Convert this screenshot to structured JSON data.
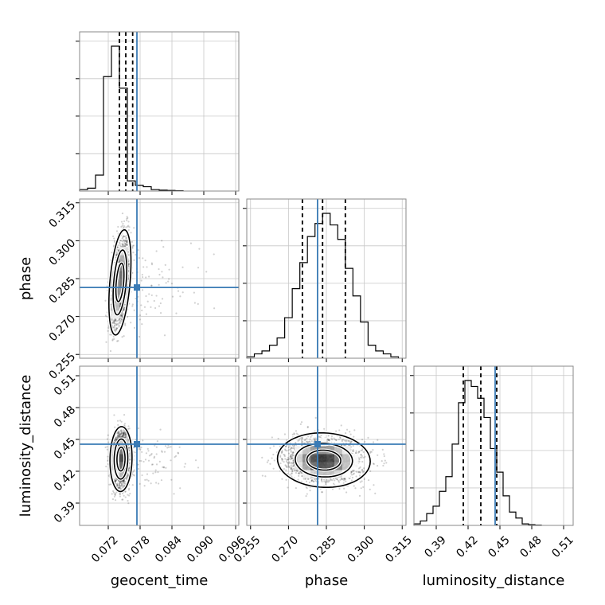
{
  "chart_data": {
    "type": "corner",
    "parameters": [
      {
        "key": "geocent_time",
        "label": "geocent_time",
        "range": [
          0.0666,
          0.0966
        ],
        "ticks": [
          "0.072",
          "0.078",
          "0.084",
          "0.090",
          "0.096"
        ],
        "tick_values": [
          0.072,
          0.078,
          0.084,
          0.09,
          0.096
        ],
        "truth": 0.0774,
        "quantiles": [
          0.0741,
          0.0753,
          0.0766
        ],
        "hist": {
          "edges": [
            0.0666,
            0.0681,
            0.0696,
            0.0711,
            0.0726,
            0.0741,
            0.0756,
            0.0771,
            0.0786,
            0.0801,
            0.0816,
            0.0831,
            0.0846,
            0.0861
          ],
          "counts": [
            0.01,
            0.02,
            0.11,
            0.79,
            1.0,
            0.71,
            0.07,
            0.04,
            0.03,
            0.01,
            0.006,
            0.004,
            0.002
          ]
        }
      },
      {
        "key": "phase",
        "label": "phase",
        "range": [
          0.2535,
          0.3165
        ],
        "ticks": [
          "0.255",
          "0.270",
          "0.285",
          "0.300",
          "0.315"
        ],
        "tick_values": [
          0.255,
          0.27,
          0.285,
          0.3,
          0.315
        ],
        "truth": 0.2815,
        "quantiles": [
          0.2755,
          0.2835,
          0.2925
        ],
        "hist": {
          "edges": [
            0.2535,
            0.2565,
            0.2595,
            0.2625,
            0.2655,
            0.2685,
            0.2715,
            0.2745,
            0.2775,
            0.2805,
            0.2835,
            0.2865,
            0.2895,
            0.2925,
            0.2955,
            0.2985,
            0.3015,
            0.3045,
            0.3075,
            0.3105,
            0.3135
          ],
          "counts": [
            0.01,
            0.03,
            0.05,
            0.09,
            0.14,
            0.28,
            0.48,
            0.66,
            0.84,
            0.93,
            1.0,
            0.92,
            0.82,
            0.62,
            0.43,
            0.25,
            0.09,
            0.05,
            0.03,
            0.01
          ]
        }
      },
      {
        "key": "luminosity_distance",
        "label": "luminosity_distance",
        "range": [
          0.369,
          0.519
        ],
        "ticks": [
          "0.39",
          "0.42",
          "0.45",
          "0.48",
          "0.51"
        ],
        "tick_values": [
          0.39,
          0.42,
          0.45,
          0.48,
          0.51
        ],
        "truth": 0.4455,
        "quantiles": [
          0.4155,
          0.432,
          0.447
        ],
        "hist": {
          "edges": [
            0.369,
            0.375,
            0.381,
            0.387,
            0.393,
            0.399,
            0.405,
            0.411,
            0.417,
            0.423,
            0.429,
            0.435,
            0.441,
            0.447,
            0.453,
            0.459,
            0.465,
            0.471,
            0.477,
            0.483,
            0.489
          ],
          "counts": [
            0.01,
            0.03,
            0.08,
            0.13,
            0.23,
            0.33,
            0.55,
            0.83,
            0.98,
            0.94,
            0.86,
            0.73,
            0.52,
            0.36,
            0.2,
            0.09,
            0.05,
            0.01,
            0.005,
            0.002
          ]
        }
      }
    ],
    "pairs": [
      {
        "x": "geocent_time",
        "y": "phase",
        "center": [
          0.0742,
          0.2835
        ],
        "sd": [
          0.00085,
          0.0085
        ],
        "rho": 0.4,
        "levels": [
          0.33,
          0.68,
          0.95
        ]
      },
      {
        "x": "geocent_time",
        "y": "luminosity_distance",
        "center": [
          0.0744,
          0.4315
        ],
        "sd": [
          0.00085,
          0.0125
        ],
        "rho": 0.05,
        "levels": [
          0.33,
          0.68,
          0.95
        ]
      },
      {
        "x": "phase",
        "y": "luminosity_distance",
        "center": [
          0.284,
          0.4305
        ],
        "sd": [
          0.0075,
          0.0105
        ],
        "rho": -0.05,
        "levels": [
          0.33,
          0.68,
          0.95
        ]
      }
    ]
  }
}
